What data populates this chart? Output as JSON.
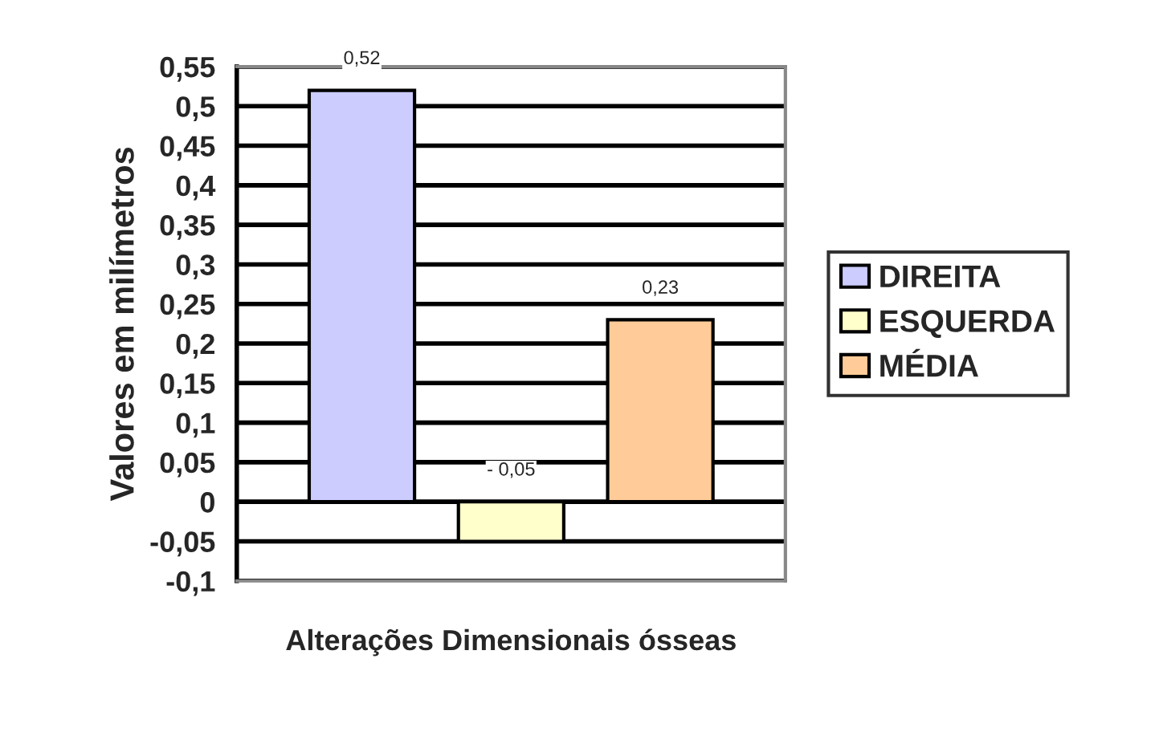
{
  "chart_data": {
    "type": "bar",
    "xlabel": "Alterações Dimensionais ósseas",
    "ylabel": "Valores em milímetros",
    "categories": [
      null
    ],
    "series": [
      {
        "name": "DIREITA",
        "color": "#ccccff",
        "values": [
          0.52
        ],
        "value_labels": [
          "0,52"
        ]
      },
      {
        "name": "ESQUERDA",
        "color": "#ffffcc",
        "values": [
          -0.05
        ],
        "value_labels": [
          "- 0,05"
        ]
      },
      {
        "name": "MÉDIA",
        "color": "#ffcc99",
        "values": [
          0.23
        ],
        "value_labels": [
          "0,23"
        ]
      }
    ],
    "ylim": [
      -0.1,
      0.55
    ],
    "yticks": [
      {
        "value": -0.1,
        "label": "-0,1"
      },
      {
        "value": -0.05,
        "label": "-0,05"
      },
      {
        "value": 0,
        "label": "0"
      },
      {
        "value": 0.05,
        "label": "0,05"
      },
      {
        "value": 0.1,
        "label": "0,1"
      },
      {
        "value": 0.15,
        "label": "0,15"
      },
      {
        "value": 0.2,
        "label": "0,2"
      },
      {
        "value": 0.25,
        "label": "0,25"
      },
      {
        "value": 0.3,
        "label": "0,3"
      },
      {
        "value": 0.35,
        "label": "0,35"
      },
      {
        "value": 0.4,
        "label": "0,4"
      },
      {
        "value": 0.45,
        "label": "0,45"
      },
      {
        "value": 0.5,
        "label": "0,5"
      },
      {
        "value": 0.55,
        "label": "0,55"
      }
    ],
    "grid": "y",
    "legend": "right"
  }
}
